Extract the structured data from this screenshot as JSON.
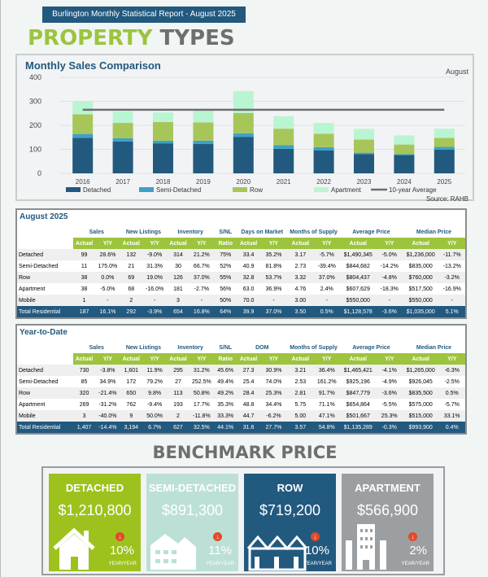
{
  "header": {
    "banner": "Burlington Monthly Statistical Report - August 2025",
    "title_a": "PROPERTY",
    "title_b": "TYPES"
  },
  "chart_data": {
    "type": "bar",
    "stacked": true,
    "title": "Monthly Sales Comparison",
    "subtitle": "August",
    "source": "Source: RAHB",
    "categories": [
      "2016",
      "2017",
      "2018",
      "2019",
      "2020",
      "2021",
      "2022",
      "2023",
      "2024",
      "2025"
    ],
    "ylim": [
      0,
      400
    ],
    "yticks": [
      "0",
      "100",
      "200",
      "300",
      "400"
    ],
    "series": [
      {
        "name": "Detached",
        "color": "#22597f",
        "values": [
          148,
          133,
          125,
          123,
          152,
          102,
          95,
          80,
          76,
          99
        ]
      },
      {
        "name": "Semi-Detached",
        "color": "#3fa0c6",
        "values": [
          16,
          13,
          11,
          13,
          15,
          15,
          14,
          6,
          4,
          11
        ]
      },
      {
        "name": "Row",
        "color": "#a7c65a",
        "values": [
          82,
          64,
          78,
          76,
          84,
          69,
          56,
          55,
          40,
          38
        ]
      },
      {
        "name": "Apartment",
        "color": "#baf5d2",
        "values": [
          55,
          48,
          40,
          52,
          92,
          52,
          45,
          44,
          38,
          38
        ]
      }
    ],
    "line": {
      "name": "10-year Average",
      "value": 265,
      "color": "#6d6e70"
    }
  },
  "tables": [
    {
      "title": "August 2025",
      "groups": [
        "Sales",
        "New Listings",
        "Inventory",
        "S/NL",
        "Days on Market",
        "Months of Supply",
        "Average Price",
        "Median Price"
      ],
      "sub": [
        "Actual",
        "Y/Y",
        "Actual",
        "Y/Y",
        "Actual",
        "Y/Y",
        "Ratio",
        "Actual",
        "Y/Y",
        "Actual",
        "Y/Y",
        "Actual",
        "Y/Y",
        "Actual",
        "Y/Y"
      ],
      "rows": [
        [
          "Detached",
          "99",
          "28.6%",
          "132",
          "-9.0%",
          "314",
          "21.2%",
          "75%",
          "33.4",
          "35.2%",
          "3.17",
          "-5.7%",
          "$1,490,345",
          "-5.0%",
          "$1,236,000",
          "-11.7%"
        ],
        [
          "Semi-Detached",
          "11",
          "175.0%",
          "21",
          "31.3%",
          "30",
          "66.7%",
          "52%",
          "40.9",
          "81.8%",
          "2.73",
          "-39.4%",
          "$844,682",
          "-14.2%",
          "$835,000",
          "-13.2%"
        ],
        [
          "Row",
          "38",
          "0.0%",
          "69",
          "19.0%",
          "126",
          "37.0%",
          "55%",
          "32.8",
          "53.7%",
          "3.32",
          "37.0%",
          "$804,437",
          "-4.8%",
          "$760,000",
          "-3.2%"
        ],
        [
          "Apartment",
          "38",
          "-5.0%",
          "68",
          "-16.0%",
          "181",
          "-2.7%",
          "56%",
          "63.0",
          "36.9%",
          "4.76",
          "2.4%",
          "$607,629",
          "-18.3%",
          "$517,500",
          "-16.9%"
        ],
        [
          "Mobile",
          "1",
          "-",
          "2",
          "-",
          "3",
          "-",
          "50%",
          "70.0",
          "-",
          "3.00",
          "-",
          "$550,000",
          "-",
          "$550,000",
          "-"
        ],
        [
          "Total Residential",
          "187",
          "16.1%",
          "292",
          "-3.9%",
          "654",
          "16.8%",
          "64%",
          "39.9",
          "37.0%",
          "3.50",
          "0.5%",
          "$1,128,578",
          "-3.6%",
          "$1,035,000",
          "5.1%"
        ]
      ]
    },
    {
      "title": "Year-to-Date",
      "groups": [
        "Sales",
        "New Listings",
        "Inventory",
        "S/NL",
        "DOM",
        "Months of Supply",
        "Average Price",
        "Median Price"
      ],
      "sub": [
        "Actual",
        "Y/Y",
        "Actual",
        "Y/Y",
        "Actual",
        "Y/Y",
        "Ratio",
        "Actual",
        "Y/Y",
        "Actual",
        "Y/Y",
        "Actual",
        "Y/Y",
        "Actual",
        "Y/Y"
      ],
      "rows": [
        [
          "Detached",
          "730",
          "-3.8%",
          "1,601",
          "11.9%",
          "295",
          "31.2%",
          "45.6%",
          "27.3",
          "30.9%",
          "3.21",
          "36.4%",
          "$1,465,421",
          "-4.1%",
          "$1,265,000",
          "-6.3%"
        ],
        [
          "Semi-Detached",
          "85",
          "34.9%",
          "172",
          "79.2%",
          "27",
          "252.5%",
          "49.4%",
          "25.4",
          "74.0%",
          "2.53",
          "161.2%",
          "$925,196",
          "-4.9%",
          "$926,045",
          "-2.5%"
        ],
        [
          "Row",
          "320",
          "-21.4%",
          "650",
          "9.8%",
          "113",
          "50.8%",
          "49.2%",
          "28.4",
          "25.3%",
          "2.81",
          "91.7%",
          "$847,779",
          "-3.6%",
          "$835,500",
          "0.5%"
        ],
        [
          "Apartment",
          "269",
          "-31.2%",
          "762",
          "-9.4%",
          "193",
          "17.7%",
          "35.3%",
          "48.8",
          "34.4%",
          "5.75",
          "71.1%",
          "$654,864",
          "-5.5%",
          "$575,000",
          "-5.7%"
        ],
        [
          "Mobile",
          "3",
          "-40.0%",
          "9",
          "50.0%",
          "2",
          "-11.8%",
          "33.3%",
          "44.7",
          "-6.2%",
          "5.00",
          "47.1%",
          "$501,667",
          "25.3%",
          "$515,000",
          "33.1%"
        ],
        [
          "Total Residential",
          "1,407",
          "-14.4%",
          "3,194",
          "6.7%",
          "627",
          "32.5%",
          "44.1%",
          "31.6",
          "27.7%",
          "3.57",
          "54.8%",
          "$1,135,289",
          "-0.3%",
          "$993,900",
          "0.4%"
        ]
      ]
    }
  ],
  "benchmark": {
    "title": "BENCHMARK PRICE",
    "cards": [
      {
        "name": "DETACHED",
        "price": "$1,210,800",
        "change": "10%",
        "yy": "YEAR/YEAR",
        "color": "#9dc21d",
        "icon": "house"
      },
      {
        "name": "SEMI-DETACHED",
        "price": "$891,300",
        "change": "11%",
        "yy": "YEAR/YEAR",
        "color": "#bce0d6",
        "icon": "semi"
      },
      {
        "name": "ROW",
        "price": "$719,200",
        "change": "10%",
        "yy": "YEAR/YEAR",
        "color": "#22597f",
        "icon": "row"
      },
      {
        "name": "APARTMENT",
        "price": "$566,900",
        "change": "2%",
        "yy": "YEAR/YEAR",
        "color": "#9c9fa1",
        "icon": "apartment"
      }
    ]
  }
}
